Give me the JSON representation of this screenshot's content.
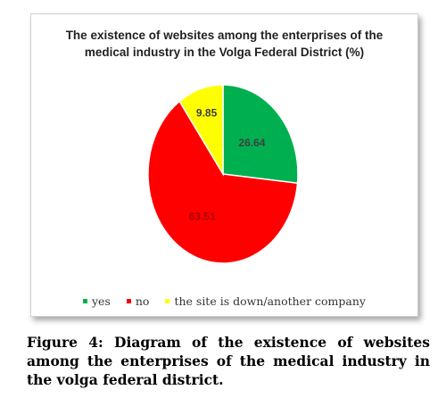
{
  "chart_data": {
    "type": "pie",
    "title_lines": [
      "The existence of websites among the enterprises of the",
      "medical industry in the Volga Federal District (%)"
    ],
    "slices": [
      {
        "label": "yes",
        "value": 26.64,
        "value_label": "26.64",
        "color": "#00b050"
      },
      {
        "label": "no",
        "value": 63.51,
        "value_label": "63.51",
        "color": "#ff0000"
      },
      {
        "label": "the site is down/another company",
        "value": 9.85,
        "value_label": "9.85",
        "color": "#ffff00"
      }
    ],
    "legend_position": "bottom"
  },
  "caption": "Figure 4: Diagram of the existence of websites among the enterprises of the medical industry in the volga federal district."
}
